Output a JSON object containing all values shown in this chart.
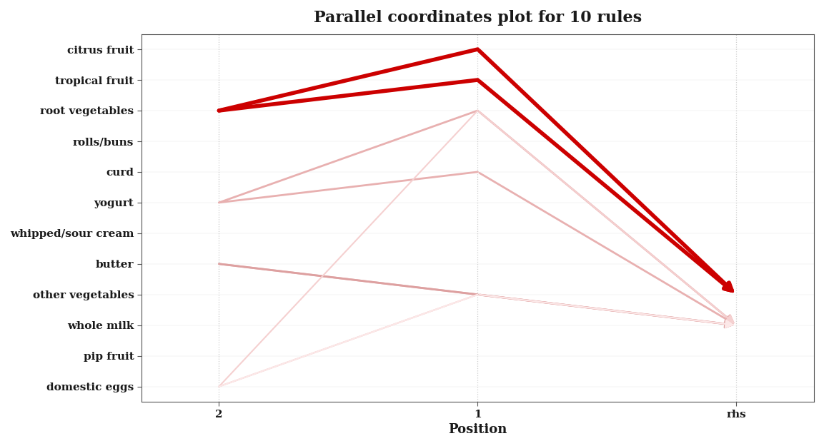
{
  "title": "Parallel coordinates plot for 10 rules",
  "xlabel": "Position",
  "x_labels": [
    "2",
    "1",
    "rhs"
  ],
  "y_labels": [
    "citrus fruit",
    "tropical fruit",
    "root vegetables",
    "rolls/buns",
    "curd",
    "yogurt",
    "whipped/sour cream",
    "butter",
    "other vegetables",
    "whole milk",
    "pip fruit",
    "domestic eggs"
  ],
  "rules": [
    {
      "lhs2": "root vegetables",
      "lhs1": "citrus fruit",
      "rhs": "other vegetables",
      "color": "#cc0000",
      "lw": 4.0
    },
    {
      "lhs2": "root vegetables",
      "lhs1": "tropical fruit",
      "rhs": "other vegetables",
      "color": "#cc0000",
      "lw": 4.0
    },
    {
      "lhs2": "root vegetables",
      "lhs1": "tropical fruit",
      "rhs": "other vegetables",
      "color": "#cc0000",
      "lw": 2.5
    },
    {
      "lhs2": "yogurt",
      "lhs1": "root vegetables",
      "rhs": "whole milk",
      "color": "#e8b0b0",
      "lw": 2.0
    },
    {
      "lhs2": "yogurt",
      "lhs1": "curd",
      "rhs": "whole milk",
      "color": "#e8b0b0",
      "lw": 2.0
    },
    {
      "lhs2": "butter",
      "lhs1": "other vegetables",
      "rhs": "whole milk",
      "color": "#e8b0b0",
      "lw": 2.0
    },
    {
      "lhs2": "butter",
      "lhs1": "other vegetables",
      "rhs": "whole milk",
      "color": "#dda0a0",
      "lw": 2.0
    },
    {
      "lhs2": "domestic eggs",
      "lhs1": "other vegetables",
      "rhs": "whole milk",
      "color": "#f0c0c0",
      "lw": 1.5
    },
    {
      "lhs2": "domestic eggs",
      "lhs1": "root vegetables",
      "rhs": "whole milk",
      "color": "#f5d0d0",
      "lw": 1.5
    },
    {
      "lhs2": "domestic eggs",
      "lhs1": "other vegetables",
      "rhs": "whole milk",
      "color": "#fce8e8",
      "lw": 1.5
    }
  ],
  "bg_color": "#ffffff",
  "plot_bg_color": "#ffffff",
  "grid_color": "#cccccc",
  "title_fontsize": 16,
  "tick_fontsize": 11,
  "label_fontsize": 13,
  "arrow_mutation_scale": 18
}
